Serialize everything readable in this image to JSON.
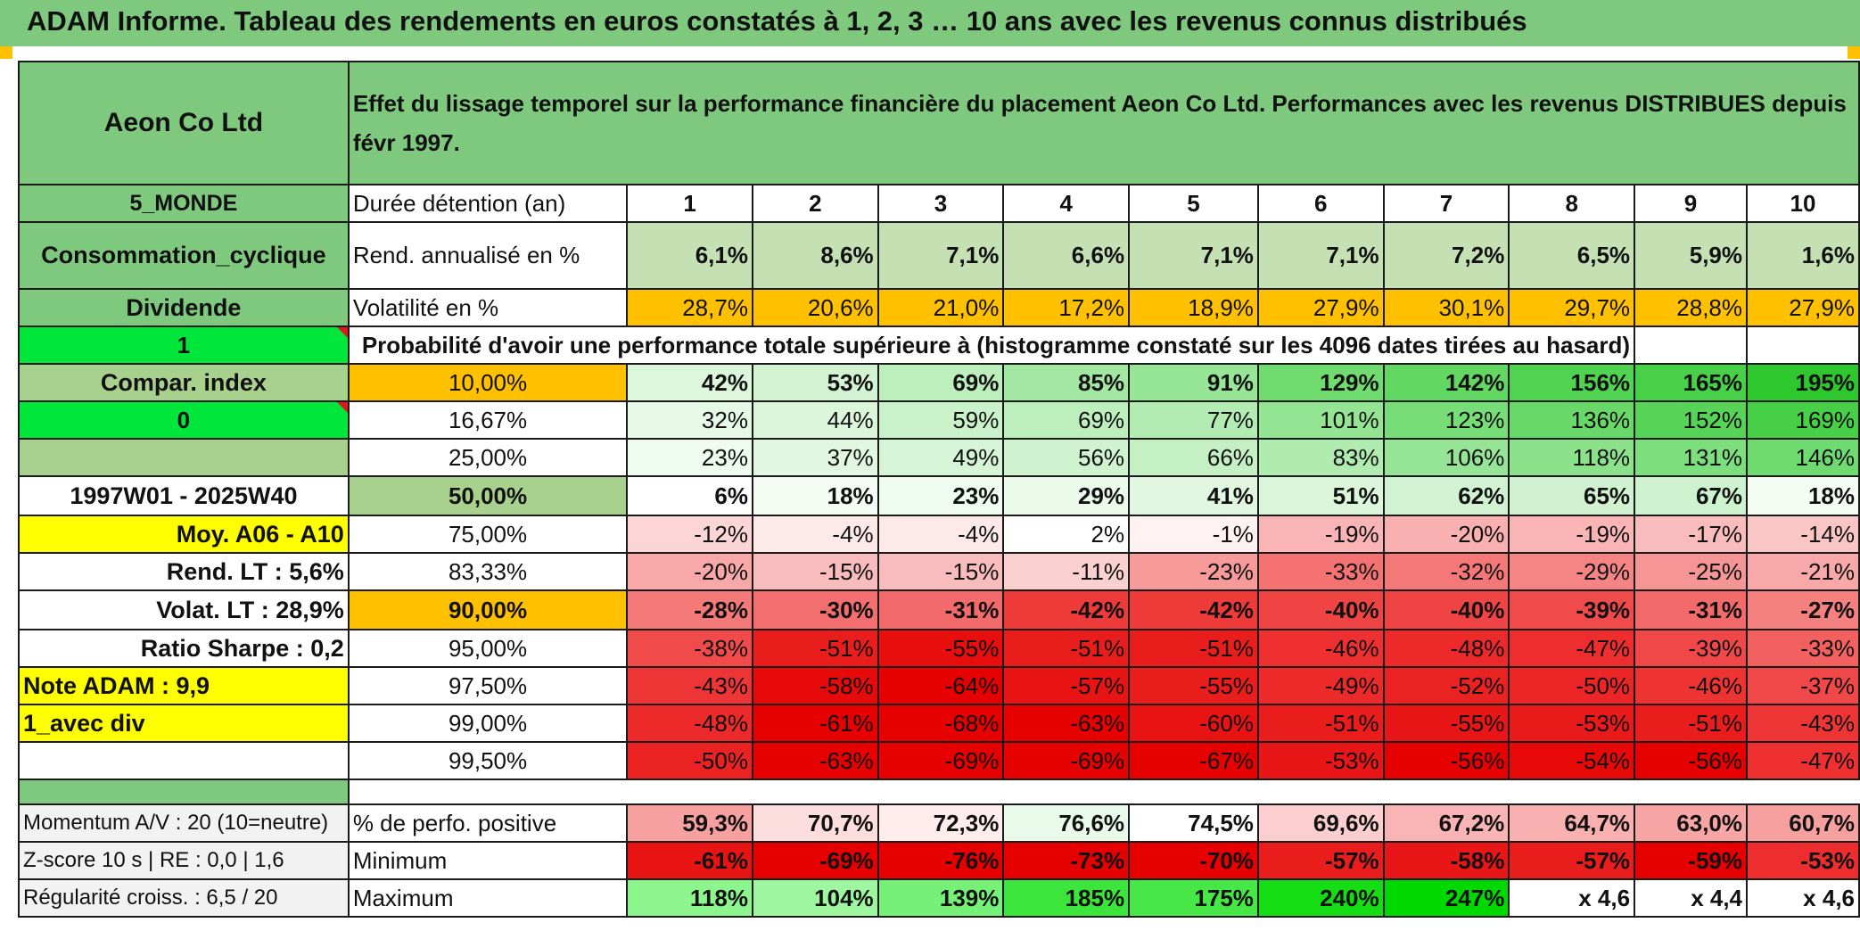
{
  "title": "ADAM Informe. Tableau des rendements en euros constatés à 1, 2, 3 … 10 ans avec les revenus connus distribués",
  "header": {
    "company": "Aeon Co Ltd",
    "description": "Effet du lissage temporel sur la performance financière du placement Aeon Co Ltd. Performances avec les revenus DISTRIBUES depuis févr 1997."
  },
  "left": {
    "zone": "5_MONDE",
    "sector": "Consommation_cyclique",
    "income": "Dividende",
    "flag1": "1",
    "compar": "Compar. index",
    "flag0": "0",
    "period": "1997W01 - 2025W40",
    "moy": "Moy. A06 - A10",
    "rend": "Rend. LT :   5,6%",
    "volat": "Volat. LT :   28,9%",
    "sharpe": "Ratio Sharpe :    0,2",
    "note": "Note ADAM : 9,9",
    "avec": "1_avec div",
    "momentum": "Momentum A/V : 20 (10=neutre)",
    "zscore": "Z-score 10 s | RE : 0,0 | 1,6",
    "regul": "Régularité croiss. : 6,5 / 20"
  },
  "labels": {
    "duree": "Durée détention (an)",
    "rend": "Rend. annualisé en %",
    "vol": "Volatilité en %",
    "prob": "Probabilité d'avoir une performance totale supérieure à (histogramme constaté sur les 4096 dates tirées au hasard)",
    "pos": "% de perfo. positive",
    "min": "Minimum",
    "max": "Maximum"
  },
  "years": [
    "1",
    "2",
    "3",
    "4",
    "5",
    "6",
    "7",
    "8",
    "9",
    "10"
  ],
  "rend": [
    "6,1%",
    "8,6%",
    "7,1%",
    "6,6%",
    "7,1%",
    "7,1%",
    "7,2%",
    "6,5%",
    "5,9%",
    "1,6%"
  ],
  "vol": [
    "28,7%",
    "20,6%",
    "21,0%",
    "17,2%",
    "18,9%",
    "27,9%",
    "30,1%",
    "29,7%",
    "28,8%",
    "27,9%"
  ],
  "quantiles": [
    {
      "pct": "10,00%",
      "vals": [
        "42%",
        "53%",
        "69%",
        "85%",
        "91%",
        "129%",
        "142%",
        "156%",
        "165%",
        "195%"
      ]
    },
    {
      "pct": "16,67%",
      "vals": [
        "32%",
        "44%",
        "59%",
        "69%",
        "77%",
        "101%",
        "123%",
        "136%",
        "152%",
        "169%"
      ]
    },
    {
      "pct": "25,00%",
      "vals": [
        "23%",
        "37%",
        "49%",
        "56%",
        "66%",
        "83%",
        "106%",
        "118%",
        "131%",
        "146%"
      ]
    },
    {
      "pct": "50,00%",
      "vals": [
        "6%",
        "18%",
        "23%",
        "29%",
        "41%",
        "51%",
        "62%",
        "65%",
        "67%",
        "18%"
      ]
    },
    {
      "pct": "75,00%",
      "vals": [
        "-12%",
        "-4%",
        "-4%",
        "2%",
        "-1%",
        "-19%",
        "-20%",
        "-19%",
        "-17%",
        "-14%"
      ]
    },
    {
      "pct": "83,33%",
      "vals": [
        "-20%",
        "-15%",
        "-15%",
        "-11%",
        "-23%",
        "-33%",
        "-32%",
        "-29%",
        "-25%",
        "-21%"
      ]
    },
    {
      "pct": "90,00%",
      "vals": [
        "-28%",
        "-30%",
        "-31%",
        "-42%",
        "-42%",
        "-40%",
        "-40%",
        "-39%",
        "-31%",
        "-27%"
      ]
    },
    {
      "pct": "95,00%",
      "vals": [
        "-38%",
        "-51%",
        "-55%",
        "-51%",
        "-51%",
        "-46%",
        "-48%",
        "-47%",
        "-39%",
        "-33%"
      ]
    },
    {
      "pct": "97,50%",
      "vals": [
        "-43%",
        "-58%",
        "-64%",
        "-57%",
        "-55%",
        "-49%",
        "-52%",
        "-50%",
        "-46%",
        "-37%"
      ]
    },
    {
      "pct": "99,00%",
      "vals": [
        "-48%",
        "-61%",
        "-68%",
        "-63%",
        "-60%",
        "-51%",
        "-55%",
        "-53%",
        "-51%",
        "-43%"
      ]
    },
    {
      "pct": "99,50%",
      "vals": [
        "-50%",
        "-63%",
        "-69%",
        "-69%",
        "-67%",
        "-53%",
        "-56%",
        "-54%",
        "-56%",
        "-47%"
      ]
    }
  ],
  "pos": [
    "59,3%",
    "70,7%",
    "72,3%",
    "76,6%",
    "74,5%",
    "69,6%",
    "67,2%",
    "64,7%",
    "63,0%",
    "60,7%"
  ],
  "min": [
    "-61%",
    "-69%",
    "-76%",
    "-73%",
    "-70%",
    "-57%",
    "-58%",
    "-57%",
    "-59%",
    "-53%"
  ],
  "max": [
    "118%",
    "104%",
    "139%",
    "185%",
    "175%",
    "240%",
    "247%",
    "x 4,6",
    "x 4,4",
    "x 4,6"
  ],
  "colors": {
    "quantiles": [
      [
        "#ddf7dd",
        "#d2f4d2",
        "#bdefbd",
        "#a2e8a2",
        "#97e697",
        "#70dc70",
        "#62d862",
        "#50d350",
        "#48d048",
        "#2ec82e"
      ],
      [
        "#e6f9e6",
        "#dcf6dc",
        "#caf2ca",
        "#bdefbd",
        "#b2ecb2",
        "#93e593",
        "#77dd77",
        "#68d968",
        "#57d457",
        "#47d047"
      ],
      [
        "#eefbee",
        "#e2f7e2",
        "#d6f5d6",
        "#cff3cf",
        "#c4f0c4",
        "#b0ebb0",
        "#96e596",
        "#8be28b",
        "#7cde7c",
        "#6fda6f"
      ],
      [
        "#ffffff",
        "#f4fcf4",
        "#f0fbf0",
        "#ebfaeb",
        "#e2f7e2",
        "#dbf6db",
        "#d2f3d2",
        "#d0f2d0",
        "#ceF2ce",
        "#f4fcf4"
      ],
      [
        "#fcd6d6",
        "#fde9e9",
        "#fde9e9",
        "#ffffff",
        "#fef2f2",
        "#f9b5b5",
        "#f8b0b0",
        "#f9b5b5",
        "#f9bcbc",
        "#fac5c5"
      ],
      [
        "#f8a8a8",
        "#f9bcbc",
        "#f9bcbc",
        "#fbd0d0",
        "#f79a9a",
        "#f47272",
        "#f47878",
        "#f58585",
        "#f69595",
        "#f8a8a8"
      ],
      [
        "#f47a7a",
        "#f36e6e",
        "#f36a6a",
        "#ef3a3a",
        "#ef3a3a",
        "#f04444",
        "#f04444",
        "#f04a4a",
        "#f36a6a",
        "#f58080"
      ],
      [
        "#f04a4a",
        "#ea1d1d",
        "#e80e0e",
        "#ea1d1d",
        "#ea1d1d",
        "#ee3030",
        "#ed2a2a",
        "#ee2e2e",
        "#f04848",
        "#f26060"
      ],
      [
        "#ee3535",
        "#e70a0a",
        "#e60000",
        "#e81414",
        "#ea1d1d",
        "#ed2a2a",
        "#eb2222",
        "#ec2626",
        "#ee3333",
        "#f04848"
      ],
      [
        "#ed2a2a",
        "#e60000",
        "#e60000",
        "#e60000",
        "#e81414",
        "#ea1d1d",
        "#e81616",
        "#e81a1a",
        "#ea1d1d",
        "#ee3535"
      ],
      [
        "#eb2222",
        "#e60000",
        "#e60000",
        "#e60000",
        "#e60000",
        "#e81616",
        "#e60000",
        "#e70808",
        "#e60000",
        "#ee3030"
      ]
    ],
    "pos": [
      "#f7a0a0",
      "#fddede",
      "#ffecec",
      "#eafaea",
      "#ffffff",
      "#fbcfcf",
      "#f9b5b5",
      "#f9b0b0",
      "#f8a5a5",
      "#f7a0a0"
    ],
    "min": [
      "#e81414",
      "#e60000",
      "#e60000",
      "#e60000",
      "#e60000",
      "#ea1d1d",
      "#e81616",
      "#ea1d1d",
      "#e60000",
      "#ee2e2e"
    ],
    "max": [
      "#8df58d",
      "#9ef79e",
      "#77f077",
      "#3be53b",
      "#48e748",
      "#14dd14",
      "#00d900",
      "#ffffff",
      "#ffffff",
      "#ffffff"
    ]
  }
}
